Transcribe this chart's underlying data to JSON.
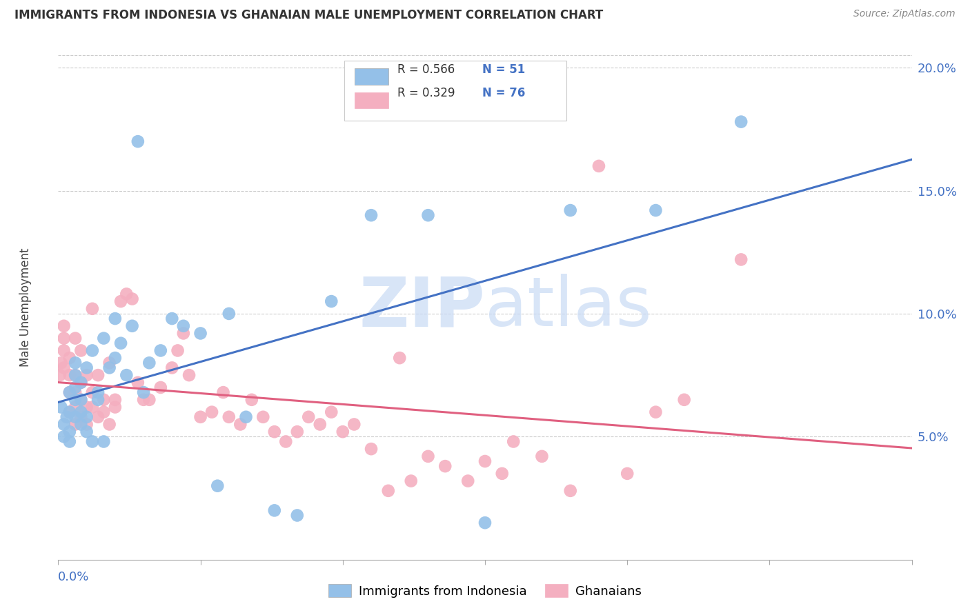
{
  "title": "IMMIGRANTS FROM INDONESIA VS GHANAIAN MALE UNEMPLOYMENT CORRELATION CHART",
  "source": "Source: ZipAtlas.com",
  "ylabel": "Male Unemployment",
  "legend_series1_label": "Immigrants from Indonesia",
  "legend_series1_r": "R = 0.566",
  "legend_series1_n": "N = 51",
  "legend_series2_label": "Ghanaians",
  "legend_series2_r": "R = 0.329",
  "legend_series2_n": "N = 76",
  "blue_color": "#94c0e8",
  "pink_color": "#f4afc0",
  "blue_line_color": "#4472c4",
  "pink_line_color": "#e06080",
  "label_color": "#4472c4",
  "watermark_color": "#c8daf5",
  "xmin": 0.0,
  "xmax": 0.15,
  "ymin": 0.0,
  "ymax": 0.205,
  "yticks": [
    0.05,
    0.1,
    0.15,
    0.2
  ],
  "ytick_labels": [
    "5.0%",
    "10.0%",
    "15.0%",
    "20.0%"
  ],
  "blue_scatter_x": [
    0.0005,
    0.001,
    0.001,
    0.0015,
    0.002,
    0.002,
    0.002,
    0.002,
    0.003,
    0.003,
    0.003,
    0.003,
    0.003,
    0.004,
    0.004,
    0.004,
    0.004,
    0.005,
    0.005,
    0.005,
    0.006,
    0.006,
    0.007,
    0.007,
    0.008,
    0.008,
    0.009,
    0.01,
    0.01,
    0.011,
    0.012,
    0.013,
    0.014,
    0.015,
    0.016,
    0.018,
    0.02,
    0.022,
    0.025,
    0.028,
    0.03,
    0.033,
    0.038,
    0.042,
    0.048,
    0.055,
    0.065,
    0.075,
    0.09,
    0.105,
    0.12
  ],
  "blue_scatter_y": [
    0.062,
    0.05,
    0.055,
    0.058,
    0.048,
    0.052,
    0.06,
    0.068,
    0.058,
    0.065,
    0.07,
    0.075,
    0.08,
    0.055,
    0.06,
    0.065,
    0.072,
    0.052,
    0.058,
    0.078,
    0.048,
    0.085,
    0.065,
    0.068,
    0.048,
    0.09,
    0.078,
    0.082,
    0.098,
    0.088,
    0.075,
    0.095,
    0.17,
    0.068,
    0.08,
    0.085,
    0.098,
    0.095,
    0.092,
    0.03,
    0.1,
    0.058,
    0.02,
    0.018,
    0.105,
    0.14,
    0.14,
    0.015,
    0.142,
    0.142,
    0.178
  ],
  "pink_scatter_x": [
    0.0003,
    0.0005,
    0.001,
    0.001,
    0.001,
    0.001,
    0.002,
    0.002,
    0.002,
    0.002,
    0.003,
    0.003,
    0.003,
    0.003,
    0.003,
    0.004,
    0.004,
    0.004,
    0.004,
    0.005,
    0.005,
    0.005,
    0.006,
    0.006,
    0.006,
    0.007,
    0.007,
    0.008,
    0.008,
    0.009,
    0.009,
    0.01,
    0.01,
    0.011,
    0.012,
    0.013,
    0.014,
    0.015,
    0.016,
    0.018,
    0.02,
    0.021,
    0.022,
    0.023,
    0.025,
    0.027,
    0.029,
    0.03,
    0.032,
    0.034,
    0.036,
    0.038,
    0.04,
    0.042,
    0.044,
    0.046,
    0.048,
    0.05,
    0.052,
    0.055,
    0.058,
    0.06,
    0.062,
    0.065,
    0.068,
    0.072,
    0.075,
    0.078,
    0.08,
    0.085,
    0.09,
    0.095,
    0.1,
    0.105,
    0.11,
    0.12
  ],
  "pink_scatter_y": [
    0.075,
    0.08,
    0.085,
    0.078,
    0.09,
    0.095,
    0.06,
    0.068,
    0.075,
    0.082,
    0.055,
    0.062,
    0.068,
    0.075,
    0.09,
    0.058,
    0.065,
    0.072,
    0.085,
    0.055,
    0.062,
    0.075,
    0.062,
    0.068,
    0.102,
    0.058,
    0.075,
    0.06,
    0.065,
    0.055,
    0.08,
    0.062,
    0.065,
    0.105,
    0.108,
    0.106,
    0.072,
    0.065,
    0.065,
    0.07,
    0.078,
    0.085,
    0.092,
    0.075,
    0.058,
    0.06,
    0.068,
    0.058,
    0.055,
    0.065,
    0.058,
    0.052,
    0.048,
    0.052,
    0.058,
    0.055,
    0.06,
    0.052,
    0.055,
    0.045,
    0.028,
    0.082,
    0.032,
    0.042,
    0.038,
    0.032,
    0.04,
    0.035,
    0.048,
    0.042,
    0.028,
    0.16,
    0.035,
    0.06,
    0.065,
    0.122
  ]
}
